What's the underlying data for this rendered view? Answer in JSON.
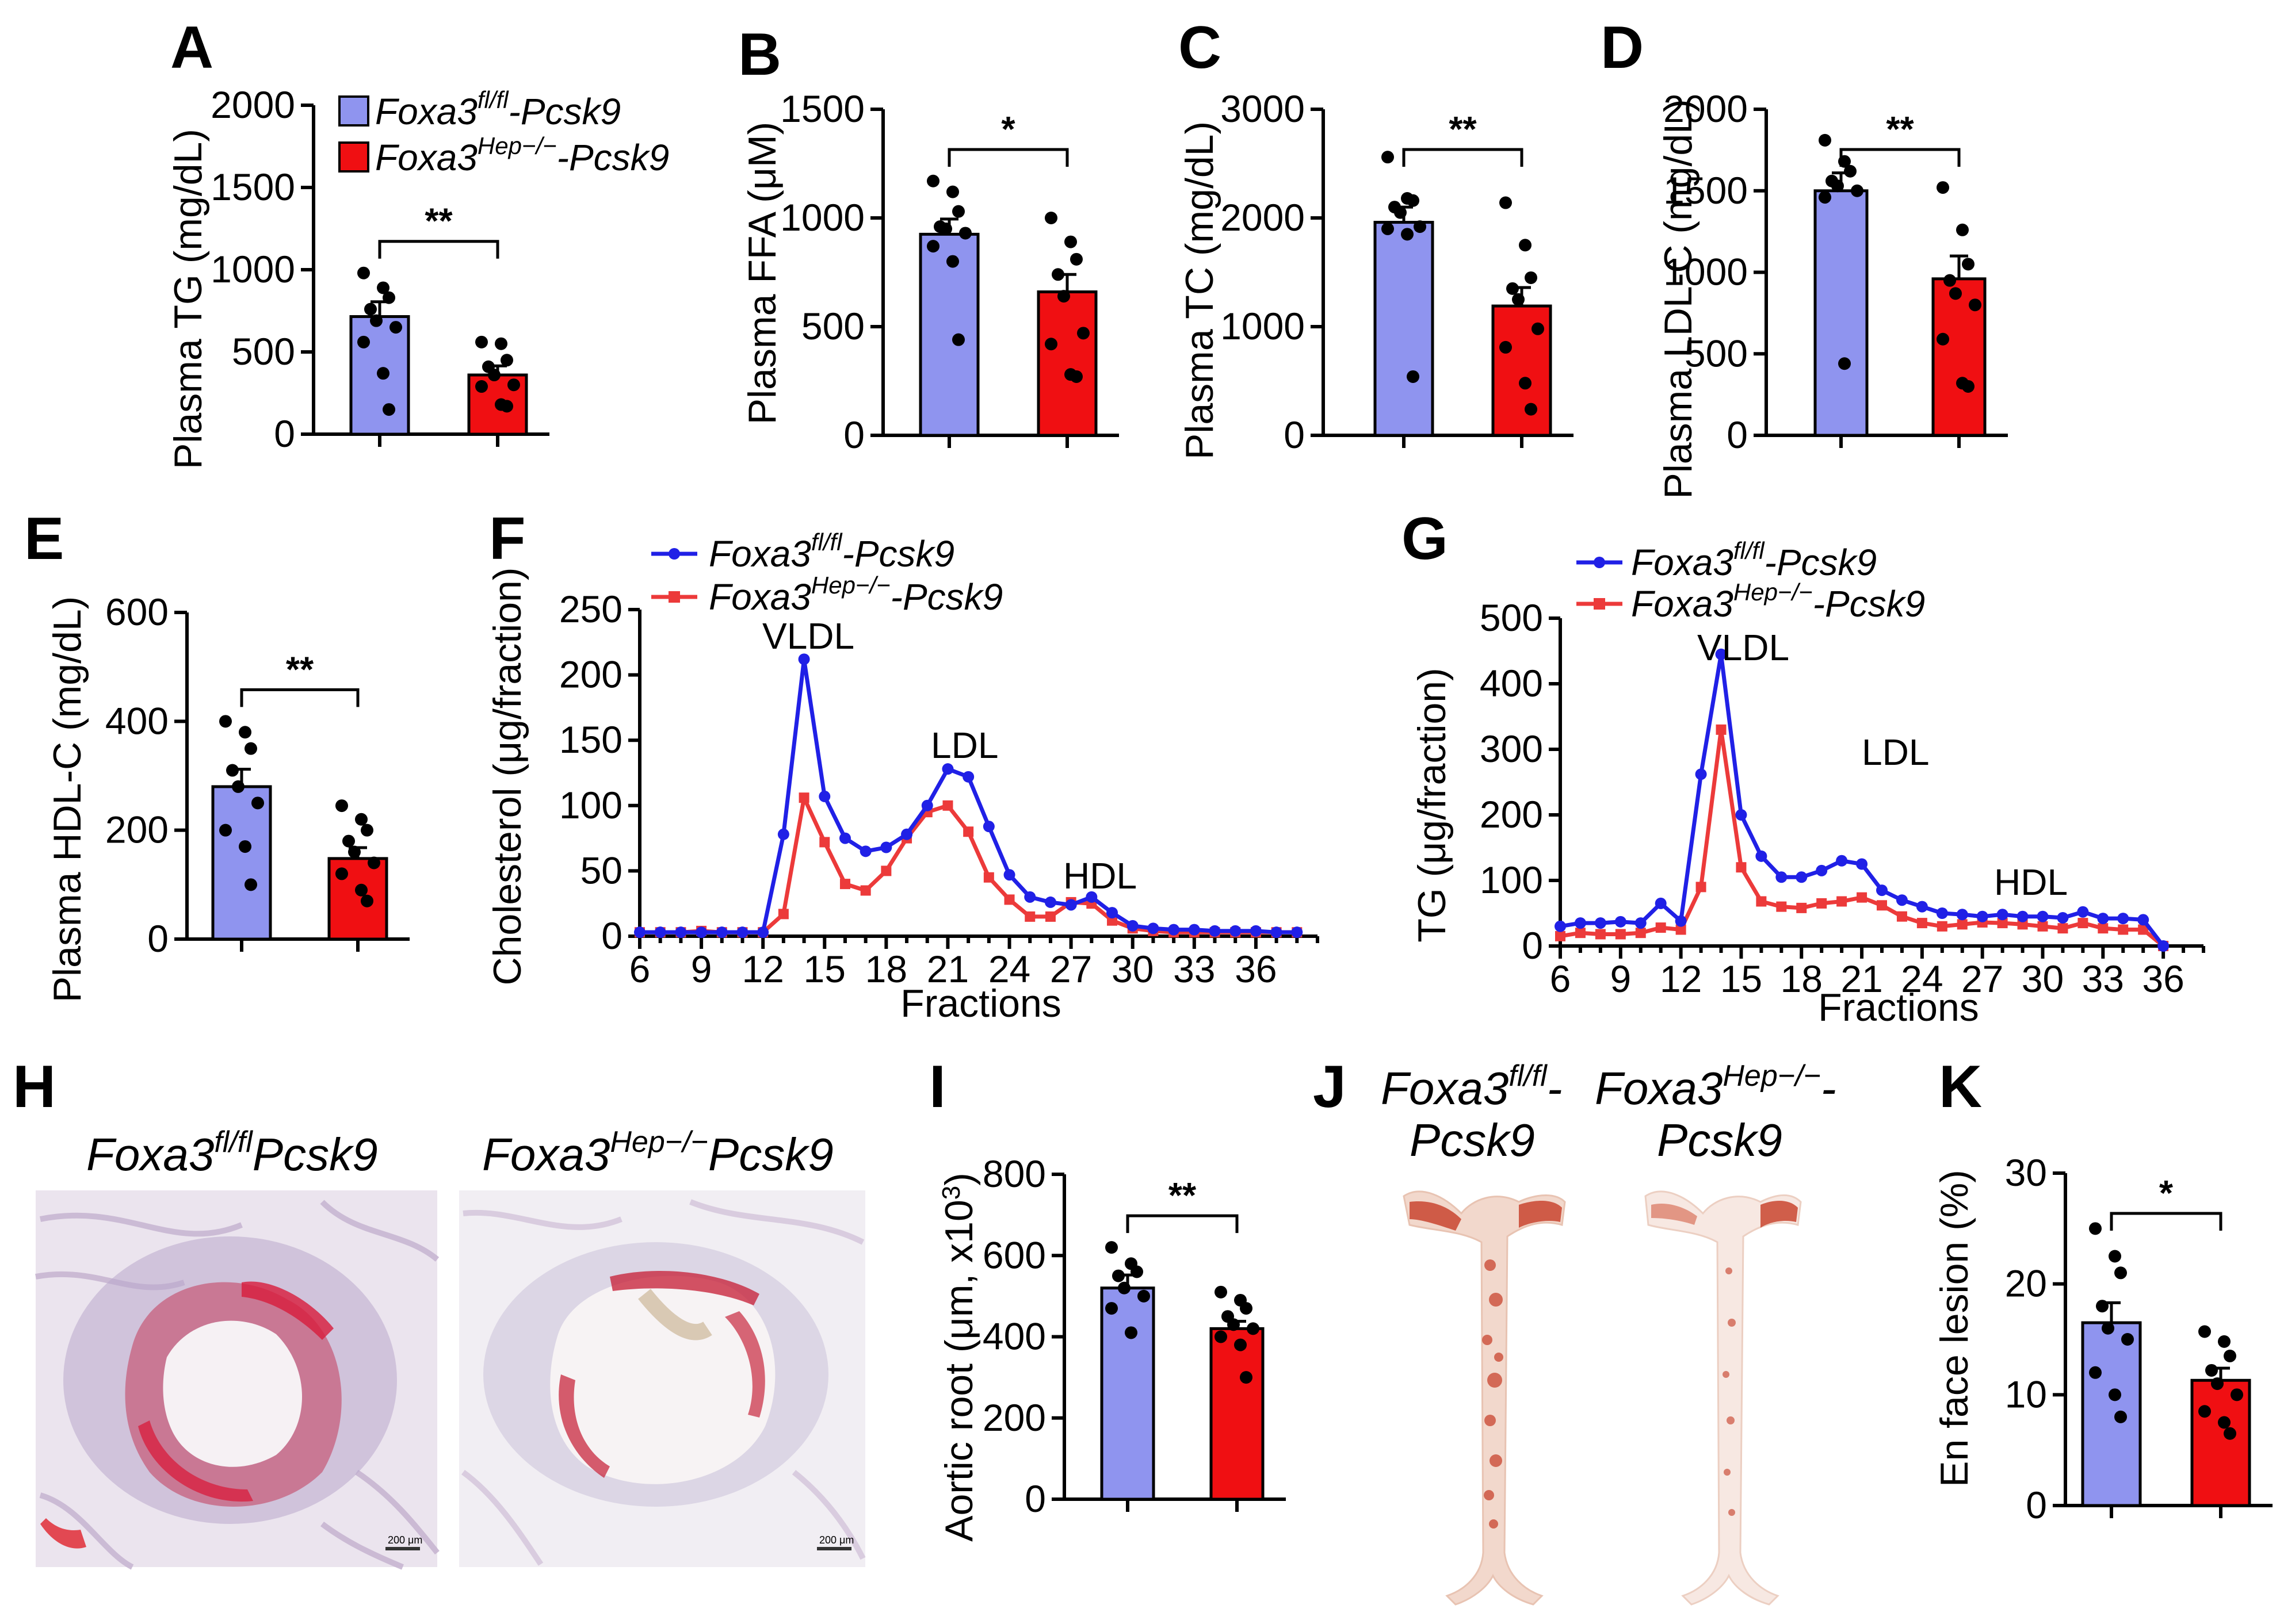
{
  "legend": {
    "wt_base": "Foxa3",
    "wt_sup": "fl/fl",
    "wt_suffix": "-Pcsk9",
    "ko_base": "Foxa3",
    "ko_sup": "Hep−/−",
    "ko_suffix": "-Pcsk9"
  },
  "colors": {
    "wt": "#8f94ef",
    "ko": "#f00f12",
    "wt_line": "#2020e6",
    "ko_line": "#ec3a3a"
  },
  "panels": {
    "A": {
      "letter": "A",
      "ylabel": "Plasma TG (mg/dL)"
    },
    "B": {
      "letter": "B",
      "ylabel": "Plasma FFA (μM)"
    },
    "C": {
      "letter": "C",
      "ylabel": "Plasma TC (mg/dL)"
    },
    "D": {
      "letter": "D",
      "ylabel": "Plasma LDL-C (mg/dL)"
    },
    "E": {
      "letter": "E",
      "ylabel": "Plasma HDL-C (mg/dL)"
    },
    "F": {
      "letter": "F",
      "ylabel": "Cholesterol (μg/fraction)",
      "xlabel": "Fractions"
    },
    "G": {
      "letter": "G",
      "ylabel": "TG (μg/fraction)",
      "xlabel": "Fractions"
    },
    "H": {
      "letter": "H",
      "left_caption_base": "Foxa3",
      "left_caption_sup": "fl/fl",
      "left_caption_suffix": "Pcsk9",
      "right_caption_base": "Foxa3",
      "right_caption_sup": "Hep−/−",
      "right_caption_suffix": "Pcsk9",
      "scale_label": "200 μm"
    },
    "I": {
      "letter": "I",
      "ylabel": "Aortic root (μm, x10",
      "ylabel_sup": "3",
      "ylabel_end": ")"
    },
    "J": {
      "letter": "J",
      "left_line1_base": "Foxa3",
      "left_line1_sup": "fl/fl",
      "left_line1_suffix": "-",
      "left_line2": "Pcsk9",
      "right_line1_base": "Foxa3",
      "right_line1_sup": "Hep−/−",
      "right_line1_suffix": "-",
      "right_line2": "Pcsk9"
    },
    "K": {
      "letter": "K",
      "ylabel": "En face lesion (%)"
    }
  },
  "peak_labels": {
    "F": [
      "VLDL",
      "LDL",
      "HDL"
    ],
    "G": [
      "VLDL",
      "LDL",
      "HDL"
    ]
  },
  "chart_data": [
    {
      "id": "A",
      "type": "bar",
      "categories": [
        "Foxa3 fl/fl-Pcsk9",
        "Foxa3 Hep-/- -Pcsk9"
      ],
      "values": [
        715,
        360
      ],
      "sem": [
        90,
        55
      ],
      "ylim": [
        0,
        2000
      ],
      "yticks": [
        0,
        500,
        1000,
        1500,
        2000
      ],
      "significance": "**",
      "points": [
        [
          980,
          890,
          830,
          760,
          690,
          650,
          560,
          370,
          150
        ],
        [
          560,
          550,
          450,
          410,
          360,
          300,
          290,
          180,
          170
        ]
      ]
    },
    {
      "id": "B",
      "type": "bar",
      "categories": [
        "Foxa3 fl/fl-Pcsk9",
        "Foxa3 Hep-/- -Pcsk9"
      ],
      "values": [
        925,
        660
      ],
      "sem": [
        70,
        80
      ],
      "ylim": [
        0,
        1500
      ],
      "yticks": [
        0,
        500,
        1000,
        1500
      ],
      "significance": "*",
      "points": [
        [
          1170,
          1120,
          1030,
          960,
          950,
          930,
          870,
          800,
          440
        ],
        [
          1000,
          890,
          810,
          740,
          640,
          470,
          420,
          280,
          270
        ]
      ]
    },
    {
      "id": "C",
      "type": "bar",
      "categories": [
        "Foxa3 fl/fl-Pcsk9",
        "Foxa3 Hep-/- -Pcsk9"
      ],
      "values": [
        1960,
        1190
      ],
      "sem": [
        140,
        170
      ],
      "ylim": [
        0,
        3000
      ],
      "yticks": [
        0,
        1000,
        2000,
        3000
      ],
      "significance": "**",
      "points": [
        [
          2560,
          2180,
          2160,
          2100,
          2050,
          1920,
          1900,
          1850,
          540
        ],
        [
          2140,
          1750,
          1450,
          1350,
          1250,
          980,
          810,
          480,
          240
        ]
      ]
    },
    {
      "id": "D",
      "type": "bar",
      "categories": [
        "Foxa3 fl/fl-Pcsk9",
        "Foxa3 Hep-/- -Pcsk9"
      ],
      "values": [
        1500,
        960
      ],
      "sem": [
        110,
        140
      ],
      "ylim": [
        0,
        2000
      ],
      "yticks": [
        0,
        500,
        1000,
        1500,
        2000
      ],
      "significance": "**",
      "points": [
        [
          1810,
          1680,
          1620,
          1560,
          1530,
          1500,
          1460,
          440
        ],
        [
          1520,
          1260,
          1050,
          950,
          870,
          800,
          590,
          320,
          300
        ]
      ]
    },
    {
      "id": "E",
      "type": "bar",
      "categories": [
        "Foxa3 fl/fl-Pcsk9",
        "Foxa3 Hep-/- -Pcsk9"
      ],
      "values": [
        280,
        148
      ],
      "sem": [
        32,
        20
      ],
      "ylim": [
        0,
        600
      ],
      "yticks": [
        0,
        200,
        400,
        600
      ],
      "significance": "**",
      "points": [
        [
          400,
          380,
          350,
          310,
          280,
          250,
          200,
          170,
          100
        ],
        [
          245,
          220,
          200,
          180,
          160,
          140,
          120,
          90,
          70
        ]
      ]
    },
    {
      "id": "F",
      "type": "line",
      "xlabel": "Fractions",
      "ylabel": "Cholesterol (μg/fraction)",
      "xlim": [
        6,
        39
      ],
      "ylim": [
        0,
        250
      ],
      "xticks": [
        6,
        9,
        12,
        15,
        18,
        21,
        24,
        27,
        30,
        33,
        36
      ],
      "yticks": [
        0,
        50,
        100,
        150,
        200,
        250
      ],
      "x": [
        6,
        7,
        8,
        9,
        10,
        11,
        12,
        13,
        14,
        15,
        16,
        17,
        18,
        19,
        20,
        21,
        22,
        23,
        24,
        25,
        26,
        27,
        28,
        29,
        30,
        31,
        32,
        33,
        34,
        35,
        36,
        37,
        38
      ],
      "series": [
        {
          "name": "Foxa3 fl/fl-Pcsk9",
          "values": [
            3,
            3,
            3,
            3,
            3,
            3,
            3,
            78,
            212,
            107,
            75,
            65,
            68,
            78,
            100,
            128,
            122,
            84,
            47,
            30,
            26,
            24,
            30,
            18,
            8,
            6,
            5,
            5,
            4,
            4,
            4,
            3,
            3
          ]
        },
        {
          "name": "Foxa3 Hep-/- -Pcsk9",
          "values": [
            3,
            3,
            3,
            4,
            3,
            3,
            3,
            17,
            106,
            72,
            40,
            35,
            50,
            75,
            95,
            100,
            80,
            45,
            28,
            15,
            15,
            26,
            25,
            12,
            6,
            4,
            3,
            3,
            3,
            3,
            3,
            3,
            3
          ]
        }
      ]
    },
    {
      "id": "G",
      "type": "line",
      "xlabel": "Fractions",
      "ylabel": "TG (μg/fraction)",
      "xlim": [
        6,
        38
      ],
      "ylim": [
        0,
        500
      ],
      "xticks": [
        6,
        9,
        12,
        15,
        18,
        21,
        24,
        27,
        30,
        33,
        36
      ],
      "yticks": [
        0,
        100,
        200,
        300,
        400,
        500
      ],
      "x": [
        6,
        7,
        8,
        9,
        10,
        11,
        12,
        13,
        14,
        15,
        16,
        17,
        18,
        19,
        20,
        21,
        22,
        23,
        24,
        25,
        26,
        27,
        28,
        29,
        30,
        31,
        32,
        33,
        34,
        35,
        36
      ],
      "series": [
        {
          "name": "Foxa3 fl/fl-Pcsk9",
          "values": [
            30,
            35,
            35,
            37,
            35,
            65,
            38,
            262,
            445,
            200,
            137,
            105,
            105,
            115,
            130,
            125,
            85,
            70,
            60,
            50,
            48,
            45,
            48,
            45,
            45,
            43,
            52,
            42,
            42,
            40,
            0
          ]
        },
        {
          "name": "Foxa3 Hep-/- -Pcsk9",
          "values": [
            15,
            20,
            18,
            18,
            20,
            28,
            25,
            90,
            330,
            120,
            68,
            60,
            58,
            65,
            68,
            74,
            62,
            45,
            35,
            30,
            33,
            36,
            35,
            33,
            30,
            27,
            35,
            27,
            25,
            25,
            0
          ]
        }
      ]
    },
    {
      "id": "I",
      "type": "bar",
      "categories": [
        "Foxa3 fl/fl-Pcsk9",
        "Foxa3 Hep-/- -Pcsk9"
      ],
      "values": [
        520,
        420
      ],
      "sem": [
        32,
        18
      ],
      "ylim": [
        0,
        800
      ],
      "yticks": [
        0,
        200,
        400,
        600,
        800
      ],
      "significance": "**",
      "points": [
        [
          620,
          580,
          560,
          550,
          520,
          500,
          470,
          410
        ],
        [
          510,
          490,
          470,
          450,
          430,
          420,
          400,
          380,
          300
        ]
      ]
    },
    {
      "id": "K",
      "type": "bar",
      "categories": [
        "Foxa3 fl/fl-Pcsk9",
        "Foxa3 Hep-/- -Pcsk9"
      ],
      "values": [
        16.5,
        11.3
      ],
      "sem": [
        1.8,
        1.1
      ],
      "ylim": [
        0,
        30
      ],
      "yticks": [
        0,
        10,
        20,
        30
      ],
      "significance": "*",
      "points": [
        [
          25,
          22.5,
          21,
          18,
          16,
          15,
          12,
          10,
          8
        ],
        [
          15.7,
          14.8,
          13.5,
          12.2,
          11,
          10,
          8.5,
          7.5,
          6.5
        ]
      ]
    }
  ]
}
